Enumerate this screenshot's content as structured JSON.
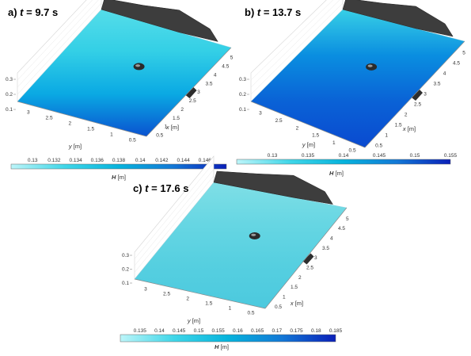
{
  "chart_data": [
    {
      "type": "surface",
      "panel_label": "a)",
      "time_symbol": "t",
      "time_value": "= 9.7",
      "time_unit": "s",
      "x_axis": {
        "label": "x",
        "unit": "[m]",
        "ticks": [
          "0.5",
          "1",
          "1.5",
          "2",
          "2.5",
          "3",
          "3.5",
          "4",
          "4.5",
          "5"
        ]
      },
      "y_axis": {
        "label": "y",
        "unit": "[m]",
        "ticks": [
          "0.5",
          "1",
          "1.5",
          "2",
          "2.5",
          "3"
        ]
      },
      "z_axis": {
        "ticks": [
          "0.1",
          "0.2",
          "0.3"
        ]
      },
      "colorbar": {
        "label": "H",
        "unit": "[m]",
        "range": [
          0.128,
          0.148
        ],
        "ticks": [
          "0.13",
          "0.132",
          "0.134",
          "0.136",
          "0.138",
          "0.14",
          "0.142",
          "0.144",
          "0.146"
        ],
        "colors": [
          "#bdf5f9",
          "#3fd6e8",
          "#06b3dc",
          "#1278d6",
          "#0a1fb8"
        ]
      },
      "surface_colors": [
        "#55dde9",
        "#33cfe6",
        "#0aa9e3",
        "#0a52d0"
      ]
    },
    {
      "type": "surface",
      "panel_label": "b)",
      "time_symbol": "t",
      "time_value": "= 13.7",
      "time_unit": "s",
      "x_axis": {
        "label": "x",
        "unit": "[m]",
        "ticks": [
          "0.5",
          "1",
          "1.5",
          "2",
          "2.5",
          "3",
          "3.5",
          "4",
          "4.5",
          "5"
        ]
      },
      "y_axis": {
        "label": "y",
        "unit": "[m]",
        "ticks": [
          "0.5",
          "1",
          "1.5",
          "2",
          "2.5",
          "3"
        ]
      },
      "z_axis": {
        "ticks": [
          "0.1",
          "0.2",
          "0.3"
        ]
      },
      "colorbar": {
        "label": "H",
        "unit": "[m]",
        "range": [
          0.125,
          0.155
        ],
        "ticks": [
          "0.13",
          "0.135",
          "0.14",
          "0.145",
          "0.15",
          "0.155"
        ],
        "colors": [
          "#bdf5f9",
          "#3fd6e8",
          "#06b3dc",
          "#1278d6",
          "#0a1fb8"
        ]
      },
      "surface_colors": [
        "#37cfe6",
        "#0a8ee0",
        "#0a62d6",
        "#0a4ad0"
      ]
    },
    {
      "type": "surface",
      "panel_label": "c)",
      "time_symbol": "t",
      "time_value": "= 17.6",
      "time_unit": "s",
      "x_axis": {
        "label": "x",
        "unit": "[m]",
        "ticks": [
          "0.5",
          "1",
          "1.5",
          "2",
          "2.5",
          "3",
          "3.5",
          "4",
          "4.5",
          "5"
        ]
      },
      "y_axis": {
        "label": "y",
        "unit": "[m]",
        "ticks": [
          "0.5",
          "1",
          "1.5",
          "2",
          "2.5",
          "3"
        ]
      },
      "z_axis": {
        "ticks": [
          "0.1",
          "0.2",
          "0.3"
        ]
      },
      "colorbar": {
        "label": "H",
        "unit": "[m]",
        "range": [
          0.13,
          0.185
        ],
        "ticks": [
          "0.135",
          "0.14",
          "0.145",
          "0.15",
          "0.155",
          "0.16",
          "0.165",
          "0.17",
          "0.175",
          "0.18",
          "0.185"
        ],
        "colors": [
          "#bdf5f9",
          "#3fd6e8",
          "#06b3dc",
          "#1278d6",
          "#0a1fb8"
        ]
      },
      "surface_colors": [
        "#7fdfe6",
        "#66d6e3",
        "#55cfe0",
        "#4cc9de"
      ]
    }
  ]
}
